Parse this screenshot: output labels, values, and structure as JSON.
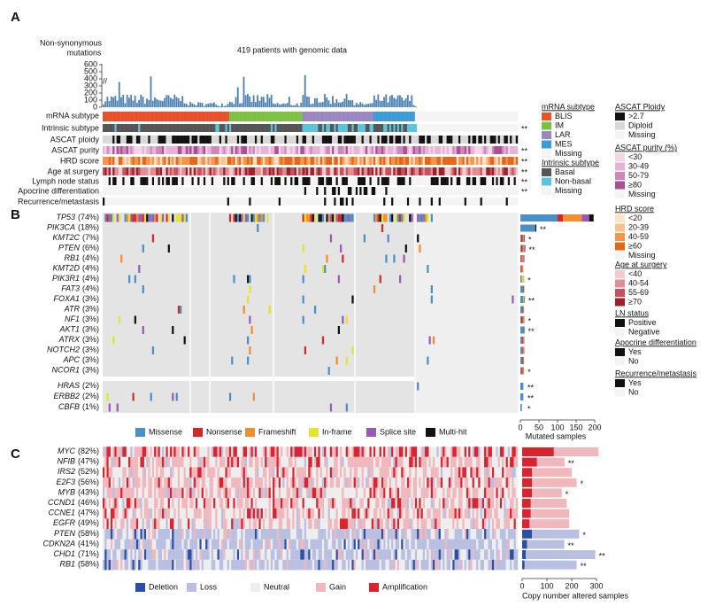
{
  "figure": {
    "panel_labels": [
      "A",
      "B",
      "C"
    ],
    "panel_a": {
      "y_axis_label": [
        "Non-synonymous",
        "mutations"
      ],
      "title": "419 patients with genomic data",
      "ylim": [
        0,
        600
      ],
      "yticks": [
        0,
        100,
        200,
        300,
        400,
        500,
        600
      ],
      "tracks": [
        {
          "label": "mRNA subtype",
          "sig": null
        },
        {
          "label": "Intrinsic subtype",
          "sig": "**"
        },
        {
          "label": "ASCAT ploidy",
          "sig": null
        },
        {
          "label": "ASCAT purity",
          "sig": "**"
        },
        {
          "label": "HRD score",
          "sig": "**"
        },
        {
          "label": "Age at surgery",
          "sig": "**"
        },
        {
          "label": "Lymph node status",
          "sig": "**"
        },
        {
          "label": "Apocrine differentiation",
          "sig": "**"
        },
        {
          "label": "Recurrence/metastasis",
          "sig": null
        }
      ]
    },
    "legends": [
      {
        "title": "mRNA subtype",
        "items": [
          {
            "label": "BLIS",
            "color": "#e8512a"
          },
          {
            "label": "IM",
            "color": "#7cc242"
          },
          {
            "label": "LAR",
            "color": "#9b86c4"
          },
          {
            "label": "MES",
            "color": "#3d9bd6"
          },
          {
            "label": "Missing",
            "color": "#f4f4f4"
          }
        ]
      },
      {
        "title": "Intrinsic subtype",
        "items": [
          {
            "label": "Basal",
            "color": "#555555"
          },
          {
            "label": "Non-basal",
            "color": "#5bc4dc"
          },
          {
            "label": "Missing",
            "color": "#f4f4f4"
          }
        ]
      },
      {
        "title": "ASCAT Ploidy",
        "items": [
          {
            "label": ">2.7",
            "color": "#111111"
          },
          {
            "label": "Diploid",
            "color": "#d9d9d9"
          },
          {
            "label": "Missing",
            "color": "#f4f4f4"
          }
        ]
      },
      {
        "title": "ASCAT purity (%)",
        "items": [
          {
            "label": "<30",
            "color": "#f3d6ea"
          },
          {
            "label": "30-49",
            "color": "#e6b3d6"
          },
          {
            "label": "50-79",
            "color": "#cf86bb"
          },
          {
            "label": "≥80",
            "color": "#a94f92"
          },
          {
            "label": "Missing",
            "color": "#f4f4f4"
          }
        ]
      },
      {
        "title": "HRD score",
        "items": [
          {
            "label": "<20",
            "color": "#fde3c8"
          },
          {
            "label": "20-39",
            "color": "#fbbf8a"
          },
          {
            "label": "40-59",
            "color": "#f5954a"
          },
          {
            "label": "≥60",
            "color": "#e2661c"
          },
          {
            "label": "Missing",
            "color": "#f4f4f4"
          }
        ]
      },
      {
        "title": "Age at surgery",
        "items": [
          {
            "label": "<40",
            "color": "#f4cacd"
          },
          {
            "label": "40-54",
            "color": "#e08e93"
          },
          {
            "label": "55-69",
            "color": "#c8505b"
          },
          {
            "label": "≥70",
            "color": "#9c1f2b"
          }
        ]
      },
      {
        "title": "LN status",
        "items": [
          {
            "label": "Positive",
            "color": "#111111"
          },
          {
            "label": "Negative",
            "color": "#f4f4f4"
          }
        ]
      },
      {
        "title": "Apocrine differentiation",
        "items": [
          {
            "label": "Yes",
            "color": "#111111"
          },
          {
            "label": "No",
            "color": "#f4f4f4"
          }
        ]
      },
      {
        "title": "Recurrence/metastasis",
        "items": [
          {
            "label": "Yes",
            "color": "#111111"
          },
          {
            "label": "No",
            "color": "#f4f4f4"
          }
        ]
      }
    ],
    "panel_b": {
      "genes": [
        {
          "name": "TP53",
          "pct": "(74%)",
          "sig": null
        },
        {
          "name": "PIK3CA",
          "pct": "(18%)",
          "sig": "**"
        },
        {
          "name": "KMT2C",
          "pct": "(7%)",
          "sig": "*"
        },
        {
          "name": "PTEN",
          "pct": "(6%)",
          "sig": "**"
        },
        {
          "name": "RB1",
          "pct": "(4%)",
          "sig": null
        },
        {
          "name": "KMT2D",
          "pct": "(4%)",
          "sig": null
        },
        {
          "name": "PIK3R1",
          "pct": "(4%)",
          "sig": "*"
        },
        {
          "name": "FAT3",
          "pct": "(4%)",
          "sig": null
        },
        {
          "name": "FOXA1",
          "pct": "(3%)",
          "sig": "**"
        },
        {
          "name": "ATR",
          "pct": "(3%)",
          "sig": null
        },
        {
          "name": "NF1",
          "pct": "(3%)",
          "sig": "*"
        },
        {
          "name": "AKT1",
          "pct": "(3%)",
          "sig": "**"
        },
        {
          "name": "ATRX",
          "pct": "(3%)",
          "sig": null
        },
        {
          "name": "NOTCH2",
          "pct": "(3%)",
          "sig": null
        },
        {
          "name": "APC",
          "pct": "(3%)",
          "sig": null
        },
        {
          "name": "NCOR1",
          "pct": "(3%)",
          "sig": "*"
        },
        {
          "name": "HRAS",
          "pct": "(2%)",
          "sig": "**"
        },
        {
          "name": "ERBB2",
          "pct": "(2%)",
          "sig": "**"
        },
        {
          "name": "CBFB",
          "pct": "(1%)",
          "sig": "*"
        }
      ],
      "series": [
        {
          "name": "Missense",
          "color": "#4a8fc7",
          "values": [
            100,
            40,
            2,
            2,
            1,
            1,
            3,
            8,
            8,
            6,
            2,
            10,
            4,
            5,
            5,
            3,
            8,
            8,
            4
          ]
        },
        {
          "name": "Nonsense",
          "color": "#d62728",
          "values": [
            15,
            0,
            4,
            4,
            3,
            3,
            0,
            2,
            0,
            2,
            4,
            0,
            3,
            2,
            3,
            3,
            0,
            0,
            0
          ]
        },
        {
          "name": "Frameshift",
          "color": "#f28e2b",
          "values": [
            50,
            0,
            4,
            4,
            4,
            4,
            2,
            1,
            1,
            2,
            4,
            0,
            3,
            3,
            2,
            4,
            0,
            0,
            0
          ]
        },
        {
          "name": "In-frame",
          "color": "#e4e42a",
          "values": [
            0,
            0,
            0,
            0,
            0,
            0,
            4,
            0,
            2,
            0,
            0,
            0,
            0,
            0,
            0,
            0,
            0,
            0,
            0
          ]
        },
        {
          "name": "Splice site",
          "color": "#9b59b6",
          "values": [
            20,
            0,
            1,
            2,
            3,
            0,
            1,
            0,
            0,
            0,
            1,
            0,
            1,
            1,
            0,
            0,
            0,
            0,
            0
          ]
        },
        {
          "name": "Multi-hit",
          "color": "#111111",
          "values": [
            12,
            3,
            1,
            1,
            0,
            0,
            0,
            0,
            1,
            0,
            0,
            1,
            0,
            0,
            0,
            0,
            0,
            0,
            0
          ]
        }
      ],
      "xlim": [
        0,
        200
      ],
      "xticks": [
        0,
        50,
        100,
        150,
        200
      ],
      "x_label": "Mutated samples"
    },
    "panel_c": {
      "genes": [
        {
          "name": "MYC",
          "pct": "(82%)",
          "sig": null
        },
        {
          "name": "NFIB",
          "pct": "(47%)",
          "sig": "**"
        },
        {
          "name": "IRS2",
          "pct": "(52%)",
          "sig": null
        },
        {
          "name": "E2F3",
          "pct": "(56%)",
          "sig": "*"
        },
        {
          "name": "MYB",
          "pct": "(43%)",
          "sig": "*"
        },
        {
          "name": "CCND1",
          "pct": "(46%)",
          "sig": null
        },
        {
          "name": "CCNE1",
          "pct": "(47%)",
          "sig": null
        },
        {
          "name": "EGFR",
          "pct": "(49%)",
          "sig": null
        },
        {
          "name": "PTEN",
          "pct": "(58%)",
          "sig": "*"
        },
        {
          "name": "CDKN2A",
          "pct": "(41%)",
          "sig": "**"
        },
        {
          "name": "CHD1",
          "pct": "(71%)",
          "sig": "**"
        },
        {
          "name": "RB1",
          "pct": "(58%)",
          "sig": "**"
        }
      ],
      "series": [
        {
          "name": "Deletion",
          "color": "#2c4fa3",
          "values": [
            0,
            0,
            0,
            0,
            0,
            0,
            0,
            0,
            40,
            20,
            15,
            10
          ]
        },
        {
          "name": "Loss",
          "color": "#b9bfe0",
          "values": [
            0,
            0,
            0,
            0,
            0,
            0,
            0,
            0,
            190,
            150,
            280,
            210
          ]
        },
        {
          "name": "Neutral",
          "color": "#eeeeee"
        },
        {
          "name": "Gain",
          "color": "#f0b8bd",
          "values": [
            180,
            111,
            160,
            180,
            120,
            145,
            155,
            160,
            0,
            0,
            0,
            0
          ]
        },
        {
          "name": "Amplification",
          "color": "#d9232e",
          "values": [
            128,
            60,
            40,
            40,
            40,
            35,
            35,
            30,
            0,
            0,
            0,
            0
          ]
        }
      ],
      "xlim": [
        0,
        300
      ],
      "xticks": [
        0,
        100,
        200,
        300
      ],
      "x_label": "Copy number altered samples"
    }
  }
}
